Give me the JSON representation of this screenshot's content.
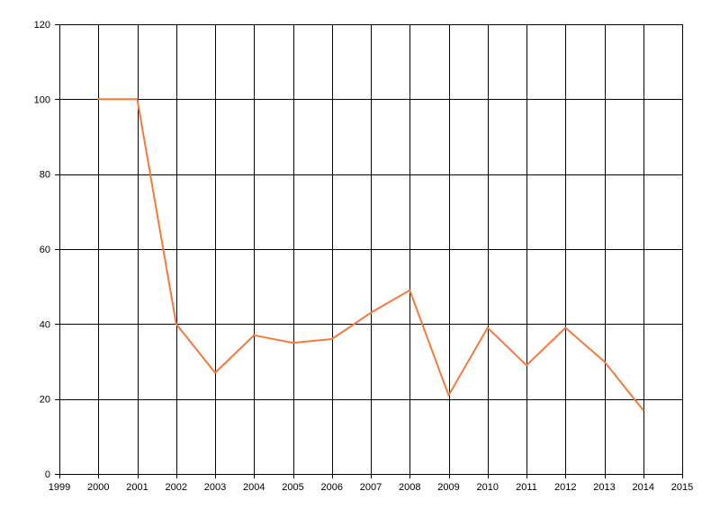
{
  "chart_data": {
    "type": "line",
    "title": "",
    "xlabel": "",
    "ylabel": "",
    "xlim": [
      1999,
      2015
    ],
    "ylim": [
      0,
      120
    ],
    "x_ticks": [
      1999,
      2000,
      2001,
      2002,
      2003,
      2004,
      2005,
      2006,
      2007,
      2008,
      2009,
      2010,
      2011,
      2012,
      2013,
      2014,
      2015
    ],
    "y_ticks": [
      0,
      20,
      40,
      60,
      80,
      100,
      120
    ],
    "grid": true,
    "series": [
      {
        "color": "#f47a3c",
        "x": [
          2000,
          2001,
          2002,
          2003,
          2004,
          2005,
          2006,
          2007,
          2008,
          2009,
          2010,
          2011,
          2012,
          2013,
          2014
        ],
        "y": [
          100,
          100,
          40,
          27,
          37,
          35,
          36,
          43,
          49,
          21,
          39,
          29,
          39,
          30,
          17
        ]
      }
    ]
  }
}
